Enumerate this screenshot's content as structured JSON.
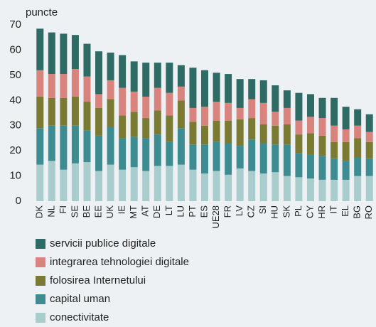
{
  "chart_data": {
    "type": "stacked_bar",
    "y_label": "puncte",
    "categories": [
      "DK",
      "NL",
      "FI",
      "SE",
      "BE",
      "EE",
      "UK",
      "IE",
      "MT",
      "AT",
      "DE",
      "LT",
      "LU",
      "PT",
      "ES",
      "UE28",
      "FR",
      "LV",
      "CZ",
      "SI",
      "HU",
      "SK",
      "PL",
      "CY",
      "HR",
      "IT",
      "EL",
      "BG",
      "RO"
    ],
    "series": [
      {
        "name": "conectivitate",
        "color": "#a9cccc",
        "values": [
          14.5,
          16,
          12.5,
          15,
          15.5,
          12,
          14.5,
          12.5,
          13.5,
          12,
          14,
          14,
          14.5,
          12.5,
          11,
          12,
          10.5,
          13,
          12,
          11,
          11.5,
          10,
          9.5,
          9,
          8.5,
          8.5,
          8.5,
          10,
          10
        ]
      },
      {
        "name": "capital uman",
        "color": "#3c8c92",
        "values": [
          14.5,
          14,
          17.5,
          15,
          12.5,
          14,
          15,
          12.5,
          12,
          13,
          12.5,
          9.5,
          14.5,
          10,
          11.5,
          11.5,
          12.5,
          9,
          12.5,
          12,
          11,
          12.5,
          9.5,
          9.5,
          9.5,
          8.5,
          7.5,
          7.5,
          7
        ]
      },
      {
        "name": "folosirea Internetului",
        "color": "#7a7a33",
        "values": [
          12.5,
          11,
          11,
          11.5,
          11.5,
          11,
          11,
          9,
          10,
          8,
          9.5,
          10.5,
          11,
          9,
          7.5,
          8.5,
          9,
          10.5,
          8.5,
          7.5,
          7.5,
          8,
          7.5,
          8.5,
          8,
          6.5,
          7.5,
          7.5,
          6.5
        ]
      },
      {
        "name": "integrarea tehnologiei digitale",
        "color": "#d9837e",
        "values": [
          10.5,
          9.5,
          9.5,
          11,
          10,
          5.5,
          7.5,
          11,
          8,
          8.5,
          9,
          9,
          5.5,
          5.5,
          7.5,
          7.5,
          7,
          4.5,
          7.5,
          8.5,
          5.5,
          6.5,
          5.5,
          6.5,
          7,
          6.5,
          5,
          5,
          4
        ]
      },
      {
        "name": "servicii publice digitale",
        "color": "#2e6b64",
        "values": [
          16.5,
          16.5,
          16,
          13.5,
          13,
          17,
          11,
          13,
          12,
          13.5,
          10,
          12,
          8.5,
          16,
          14.5,
          11.5,
          11.5,
          11.5,
          8,
          9,
          10.5,
          7,
          11,
          9,
          8,
          11,
          9,
          6.5,
          7
        ]
      }
    ],
    "ylim": [
      0,
      70
    ],
    "yticks": [
      0,
      10,
      20,
      30,
      40,
      50,
      60,
      70
    ]
  }
}
